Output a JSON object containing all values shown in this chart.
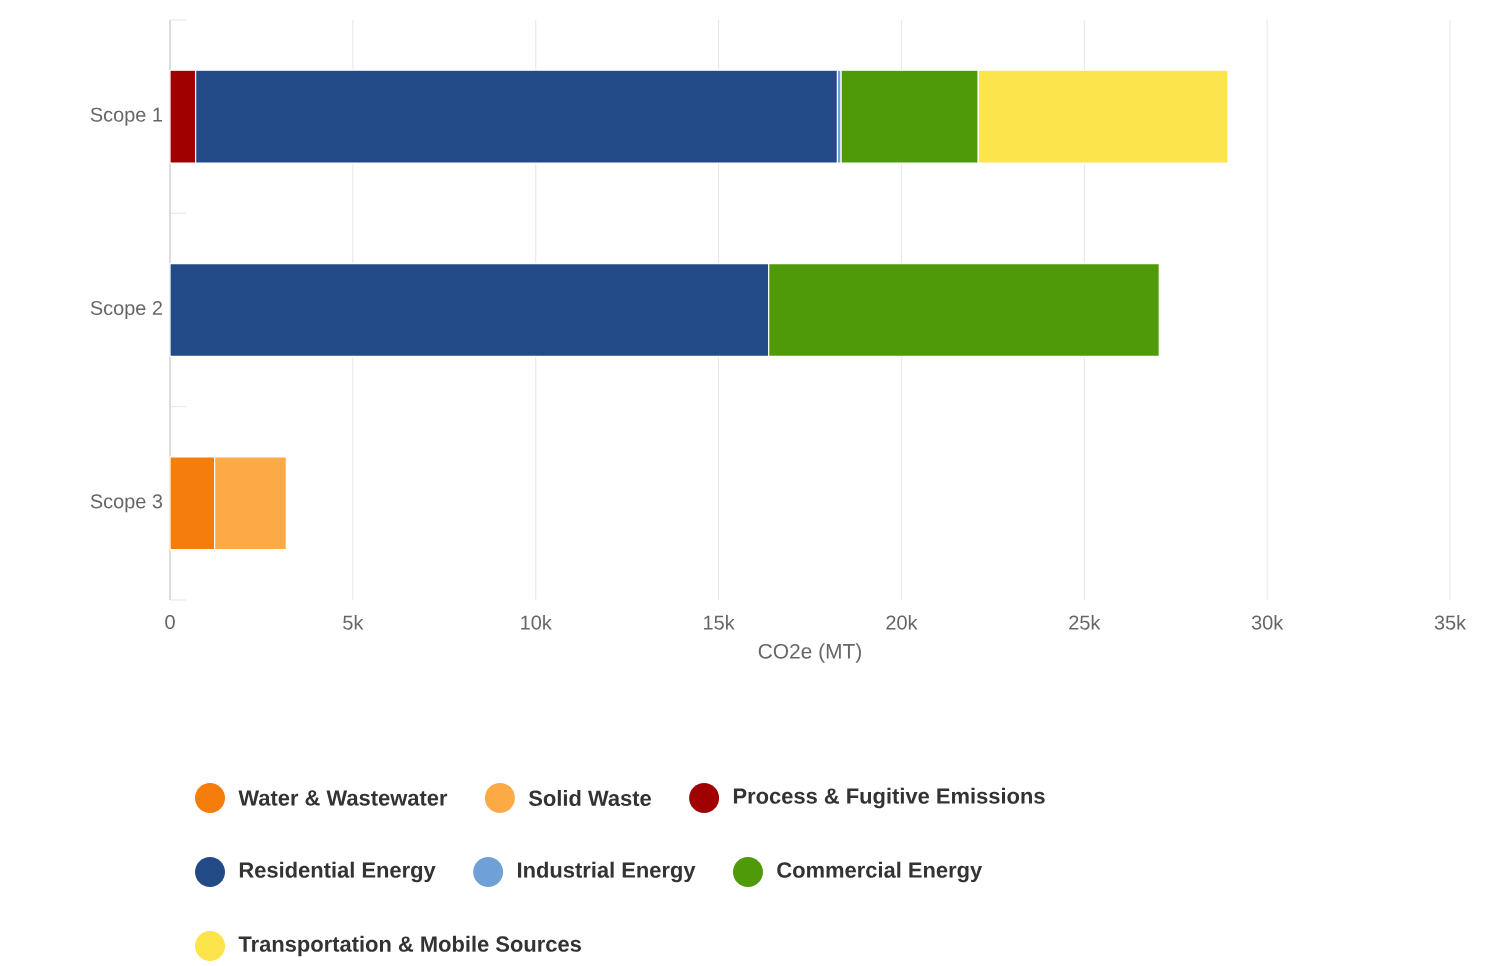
{
  "chart_data": {
    "type": "bar",
    "orientation": "horizontal",
    "stacked": true,
    "xlabel": "CO2e (MT)",
    "categories": [
      "Scope 1",
      "Scope 2",
      "Scope 3"
    ],
    "series": [
      {
        "name": "Water & Wastewater",
        "color": "#f57d0c",
        "values": [
          null,
          null,
          1220
        ]
      },
      {
        "name": "Solid Waste",
        "color": "#fbaa45",
        "values": [
          null,
          null,
          1960
        ]
      },
      {
        "name": "Process & Fugitive Emissions",
        "color": "#a00000",
        "values": [
          700,
          null,
          null
        ]
      },
      {
        "name": "Residential Energy",
        "color": "#224a87",
        "values": [
          17550,
          16370,
          null
        ]
      },
      {
        "name": "Industrial Energy",
        "color": "#6fa1d8",
        "values": [
          100,
          null,
          null
        ]
      },
      {
        "name": "Commercial Energy",
        "color": "#4f9a09",
        "values": [
          3750,
          10680,
          null
        ]
      },
      {
        "name": "Transportation & Mobile Sources",
        "color": "#fbe44c",
        "values": [
          6830,
          null,
          null
        ]
      }
    ],
    "xlim": [
      0,
      35000
    ],
    "xticks": [
      0,
      {
        "value": 5000,
        "label": "5k"
      },
      {
        "value": 10000,
        "label": "10k"
      },
      {
        "value": 15000,
        "label": "15k"
      },
      {
        "value": 20000,
        "label": "20k"
      },
      {
        "value": 25000,
        "label": "25k"
      },
      {
        "value": 30000,
        "label": "30k"
      },
      {
        "value": 35000,
        "label": "35k"
      }
    ],
    "grid": "x",
    "legend": "bottom"
  }
}
